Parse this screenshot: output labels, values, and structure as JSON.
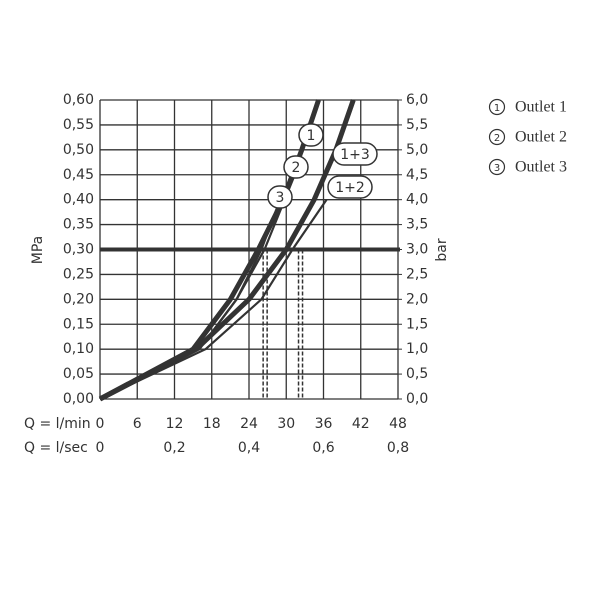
{
  "chart_data": {
    "type": "line",
    "y_label": "MPa",
    "y2_label": "bar",
    "x_label": "Q = l/min",
    "x2_label": "Q = l/sec",
    "xlim": [
      0,
      48
    ],
    "xticks": [
      0,
      6,
      12,
      18,
      24,
      30,
      36,
      42,
      48
    ],
    "x2lim": [
      0,
      0.8
    ],
    "x2ticks": [
      0,
      {
        "value": 0.2,
        "label": "0,2"
      },
      {
        "value": 0.4,
        "label": "0,4"
      },
      {
        "value": 0.6,
        "label": "0,6"
      },
      {
        "value": 0.8,
        "label": "0,8"
      }
    ],
    "ylim": [
      0,
      0.6
    ],
    "yticks": [
      {
        "value": 0,
        "label": "0,00"
      },
      {
        "value": 0.05,
        "label": "0,05"
      },
      {
        "value": 0.1,
        "label": "0,10"
      },
      {
        "value": 0.15,
        "label": "0,15"
      },
      {
        "value": 0.2,
        "label": "0,20"
      },
      {
        "value": 0.25,
        "label": "0,25"
      },
      {
        "value": 0.3,
        "label": "0,30"
      },
      {
        "value": 0.35,
        "label": "0,35"
      },
      {
        "value": 0.4,
        "label": "0,40"
      },
      {
        "value": 0.45,
        "label": "0,45"
      },
      {
        "value": 0.5,
        "label": "0,50"
      },
      {
        "value": 0.55,
        "label": "0,55"
      },
      {
        "value": 0.6,
        "label": "0,60"
      }
    ],
    "y2lim": [
      0,
      6
    ],
    "y2ticks": [
      {
        "value": 0,
        "label": "0,0"
      },
      {
        "value": 0.5,
        "label": "0,5"
      },
      {
        "value": 1,
        "label": "1,0"
      },
      {
        "value": 1.5,
        "label": "1,5"
      },
      {
        "value": 2,
        "label": "2,0"
      },
      {
        "value": 2.5,
        "label": "2,5"
      },
      {
        "value": 3,
        "label": "3,0"
      },
      {
        "value": 3.5,
        "label": "3,5"
      },
      {
        "value": 4,
        "label": "4,0"
      },
      {
        "value": 4.5,
        "label": "4,5"
      },
      {
        "value": 5,
        "label": "5,0"
      },
      {
        "value": 5.5,
        "label": "5,5"
      },
      {
        "value": 6,
        "label": "6,0"
      }
    ],
    "grid": true,
    "reference_y": 0.3,
    "reference_x": [
      26.6,
      32.3
    ],
    "series": [
      {
        "name": "1",
        "color": "#333333",
        "style": "thick",
        "x": [
          0,
          15,
          21,
          25.5,
          29.5,
          32.5,
          35.2
        ],
        "values": [
          0,
          0.1,
          0.2,
          0.3,
          0.4,
          0.5,
          0.6
        ]
      },
      {
        "name": "2",
        "color": "#333333",
        "style": "thin",
        "x": [
          0,
          16,
          22,
          26.5,
          31.7
        ],
        "values": [
          0,
          0.1,
          0.2,
          0.3,
          0.46
        ]
      },
      {
        "name": "3",
        "color": "#333333",
        "style": "thin",
        "x": [
          0,
          16,
          22,
          26,
          29
        ],
        "values": [
          0,
          0.1,
          0.2,
          0.3,
          0.4
        ]
      },
      {
        "name": "1+2",
        "color": "#333333",
        "style": "thin",
        "x": [
          0,
          17,
          26,
          31,
          36.5
        ],
        "values": [
          0,
          0.1,
          0.2,
          0.3,
          0.4
        ]
      },
      {
        "name": "1+3",
        "color": "#333333",
        "style": "thick",
        "x": [
          0,
          15.5,
          24,
          30,
          34.5,
          38,
          40.8
        ],
        "values": [
          0,
          0.1,
          0.2,
          0.3,
          0.4,
          0.5,
          0.6
        ]
      }
    ],
    "legend": [
      {
        "symbol": "1",
        "label": "Outlet 1"
      },
      {
        "symbol": "2",
        "label": "Outlet 2"
      },
      {
        "symbol": "3",
        "label": "Outlet 3"
      }
    ]
  }
}
